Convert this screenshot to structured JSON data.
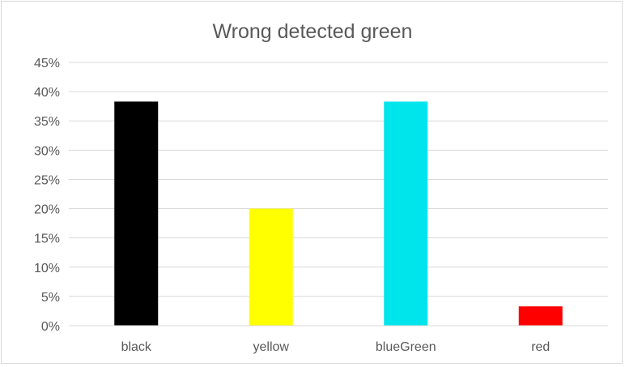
{
  "chart_data": {
    "type": "bar",
    "title": "Wrong detected green",
    "xlabel": "",
    "ylabel": "",
    "categories": [
      "black",
      "yellow",
      "blueGreen",
      "red"
    ],
    "values": [
      0.383,
      0.2,
      0.383,
      0.033
    ],
    "bar_colors": [
      "#000000",
      "#ffff00",
      "#00e5ec",
      "#ff0000"
    ],
    "ylim": [
      0,
      0.45
    ],
    "yticks": [
      "0%",
      "5%",
      "10%",
      "15%",
      "20%",
      "25%",
      "30%",
      "35%",
      "40%",
      "45%"
    ],
    "grid": true,
    "legend": "none"
  }
}
